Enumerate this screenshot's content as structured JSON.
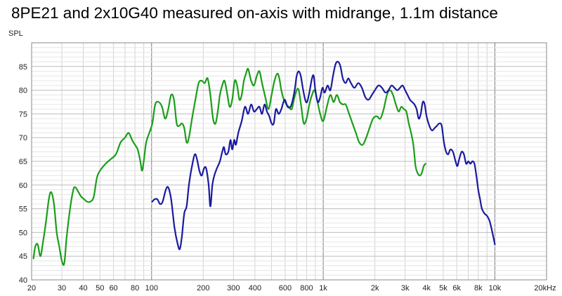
{
  "chart_data": {
    "type": "line",
    "title": "8PE21 and 2x10G40 measured on-axis with midrange, 1.1m distance",
    "ylabel": "SPL",
    "xlabel": "",
    "x_scale": "log",
    "xlim": [
      20,
      20000
    ],
    "ylim": [
      40,
      90
    ],
    "grid": true,
    "y_ticks": [
      40,
      45,
      50,
      55,
      60,
      65,
      70,
      75,
      80,
      85
    ],
    "x_ticks": [
      {
        "value": 20,
        "label": "20"
      },
      {
        "value": 30,
        "label": "30"
      },
      {
        "value": 40,
        "label": "40"
      },
      {
        "value": 50,
        "label": "50"
      },
      {
        "value": 60,
        "label": "60"
      },
      {
        "value": 80,
        "label": "80"
      },
      {
        "value": 100,
        "label": "100"
      },
      {
        "value": 200,
        "label": "200"
      },
      {
        "value": 300,
        "label": "300"
      },
      {
        "value": 400,
        "label": "400"
      },
      {
        "value": 600,
        "label": "600"
      },
      {
        "value": 800,
        "label": "800"
      },
      {
        "value": 1000,
        "label": "1k"
      },
      {
        "value": 2000,
        "label": "2k"
      },
      {
        "value": 3000,
        "label": "3k"
      },
      {
        "value": 4000,
        "label": "4k"
      },
      {
        "value": 5000,
        "label": "5k"
      },
      {
        "value": 6000,
        "label": "6k"
      },
      {
        "value": 8000,
        "label": "8k"
      },
      {
        "value": 10000,
        "label": "10k"
      },
      {
        "value": 20000,
        "label": "20kHz"
      }
    ],
    "series": [
      {
        "color": "#1a9e1a",
        "points": [
          [
            20.5,
            44.5
          ],
          [
            21,
            47
          ],
          [
            21.7,
            47.5
          ],
          [
            22.5,
            45
          ],
          [
            23.3,
            48
          ],
          [
            24.2,
            52
          ],
          [
            25.2,
            57
          ],
          [
            26,
            58.5
          ],
          [
            27,
            56
          ],
          [
            28,
            50
          ],
          [
            29,
            47
          ],
          [
            30,
            44
          ],
          [
            31,
            43.5
          ],
          [
            32,
            49
          ],
          [
            33.5,
            55
          ],
          [
            35,
            59
          ],
          [
            36,
            59.5
          ],
          [
            37.5,
            58.5
          ],
          [
            39,
            57.5
          ],
          [
            40.5,
            57
          ],
          [
            42,
            56.5
          ],
          [
            44,
            56.5
          ],
          [
            46,
            57.5
          ],
          [
            48,
            61.5
          ],
          [
            50,
            63
          ],
          [
            54,
            64.5
          ],
          [
            58,
            65.5
          ],
          [
            62,
            66.5
          ],
          [
            66,
            69
          ],
          [
            70,
            70
          ],
          [
            73,
            71
          ],
          [
            75,
            70.5
          ],
          [
            77,
            69.5
          ],
          [
            80,
            68.5
          ],
          [
            83,
            67.5
          ],
          [
            86,
            65
          ],
          [
            88,
            63
          ],
          [
            90,
            65
          ],
          [
            93,
            69
          ],
          [
            97,
            71
          ],
          [
            101,
            73
          ],
          [
            105,
            77
          ],
          [
            110,
            77.5
          ],
          [
            115,
            76.5
          ],
          [
            120,
            74
          ],
          [
            125,
            76
          ],
          [
            130,
            79
          ],
          [
            135,
            78
          ],
          [
            140,
            73
          ],
          [
            145,
            72.5
          ],
          [
            150,
            73
          ],
          [
            155,
            72
          ],
          [
            160,
            69
          ],
          [
            165,
            70
          ],
          [
            172,
            74
          ],
          [
            180,
            78
          ],
          [
            188,
            81.5
          ],
          [
            196,
            82
          ],
          [
            204,
            81.5
          ],
          [
            212,
            82.5
          ],
          [
            220,
            79
          ],
          [
            228,
            74
          ],
          [
            236,
            73
          ],
          [
            244,
            76
          ],
          [
            250,
            79
          ],
          [
            258,
            81
          ],
          [
            266,
            82
          ],
          [
            275,
            79.5
          ],
          [
            285,
            76.5
          ],
          [
            295,
            78
          ],
          [
            305,
            82
          ],
          [
            315,
            81
          ],
          [
            325,
            78
          ],
          [
            335,
            79
          ],
          [
            345,
            82
          ],
          [
            355,
            83.5
          ],
          [
            365,
            84.5
          ],
          [
            380,
            82
          ],
          [
            395,
            81
          ],
          [
            410,
            83
          ],
          [
            425,
            84
          ],
          [
            440,
            81.5
          ],
          [
            460,
            78.5
          ],
          [
            480,
            76
          ],
          [
            500,
            79
          ],
          [
            520,
            82
          ],
          [
            540,
            83.5
          ],
          [
            555,
            82.5
          ],
          [
            570,
            80
          ],
          [
            590,
            78
          ],
          [
            610,
            77
          ],
          [
            630,
            76.5
          ],
          [
            655,
            76
          ],
          [
            675,
            78
          ],
          [
            700,
            80
          ],
          [
            720,
            80
          ],
          [
            745,
            76.5
          ],
          [
            770,
            73
          ],
          [
            800,
            74
          ],
          [
            830,
            77
          ],
          [
            860,
            79
          ],
          [
            890,
            80
          ],
          [
            920,
            78
          ],
          [
            960,
            75
          ],
          [
            1000,
            73.5
          ],
          [
            1050,
            76.5
          ],
          [
            1100,
            79
          ],
          [
            1150,
            77.5
          ],
          [
            1200,
            79
          ],
          [
            1250,
            77.5
          ],
          [
            1300,
            77
          ],
          [
            1350,
            77
          ],
          [
            1400,
            75.5
          ],
          [
            1480,
            73
          ],
          [
            1550,
            71
          ],
          [
            1620,
            69
          ],
          [
            1700,
            68.5
          ],
          [
            1780,
            70
          ],
          [
            1860,
            72
          ],
          [
            1950,
            74
          ],
          [
            2050,
            74.5
          ],
          [
            2150,
            74
          ],
          [
            2250,
            76
          ],
          [
            2350,
            79
          ],
          [
            2450,
            80
          ],
          [
            2550,
            79
          ],
          [
            2650,
            77
          ],
          [
            2750,
            75.5
          ],
          [
            2850,
            76.5
          ],
          [
            2950,
            76
          ],
          [
            3050,
            75.5
          ],
          [
            3150,
            73
          ],
          [
            3250,
            71
          ],
          [
            3350,
            68.5
          ],
          [
            3450,
            64
          ],
          [
            3550,
            62.5
          ],
          [
            3650,
            62
          ],
          [
            3750,
            62.5
          ],
          [
            3850,
            64
          ],
          [
            3950,
            64.5
          ]
        ]
      },
      {
        "color": "#1a1aa0",
        "points": [
          [
            101,
            56.5
          ],
          [
            104,
            57
          ],
          [
            108,
            57
          ],
          [
            112,
            56
          ],
          [
            116,
            56.5
          ],
          [
            121,
            59
          ],
          [
            125,
            59.5
          ],
          [
            130,
            57
          ],
          [
            136,
            51
          ],
          [
            142,
            47.5
          ],
          [
            146,
            46.5
          ],
          [
            150,
            49
          ],
          [
            155,
            54
          ],
          [
            160,
            55.5
          ],
          [
            165,
            60
          ],
          [
            172,
            64
          ],
          [
            180,
            66.5
          ],
          [
            190,
            63
          ],
          [
            196,
            62
          ],
          [
            202,
            63.5
          ],
          [
            208,
            63.5
          ],
          [
            215,
            60
          ],
          [
            220,
            55.5
          ],
          [
            226,
            60
          ],
          [
            232,
            62
          ],
          [
            240,
            63.5
          ],
          [
            250,
            65
          ],
          [
            258,
            67
          ],
          [
            264,
            68
          ],
          [
            270,
            66.5
          ],
          [
            280,
            67
          ],
          [
            288,
            69.5
          ],
          [
            295,
            67.5
          ],
          [
            303,
            69.5
          ],
          [
            310,
            68.5
          ],
          [
            320,
            71
          ],
          [
            335,
            73.5
          ],
          [
            350,
            76.5
          ],
          [
            365,
            75
          ],
          [
            380,
            77
          ],
          [
            395,
            75.5
          ],
          [
            410,
            76
          ],
          [
            425,
            76.5
          ],
          [
            440,
            75
          ],
          [
            455,
            77
          ],
          [
            470,
            75.5
          ],
          [
            485,
            74.5
          ],
          [
            500,
            73
          ],
          [
            515,
            73
          ],
          [
            530,
            76
          ],
          [
            550,
            75
          ],
          [
            570,
            76
          ],
          [
            595,
            78
          ],
          [
            620,
            76.5
          ],
          [
            645,
            76.5
          ],
          [
            665,
            78
          ],
          [
            685,
            80.5
          ],
          [
            700,
            83
          ],
          [
            720,
            84
          ],
          [
            740,
            83
          ],
          [
            760,
            80.5
          ],
          [
            785,
            78
          ],
          [
            805,
            77.5
          ],
          [
            830,
            79.5
          ],
          [
            860,
            82.5
          ],
          [
            880,
            83
          ],
          [
            900,
            80
          ],
          [
            930,
            77.5
          ],
          [
            960,
            78.5
          ],
          [
            990,
            80.5
          ],
          [
            1020,
            79.5
          ],
          [
            1060,
            81
          ],
          [
            1100,
            80
          ],
          [
            1140,
            83
          ],
          [
            1180,
            85.5
          ],
          [
            1220,
            86
          ],
          [
            1260,
            85
          ],
          [
            1300,
            82.5
          ],
          [
            1350,
            81.5
          ],
          [
            1400,
            82.5
          ],
          [
            1450,
            81.5
          ],
          [
            1520,
            80.5
          ],
          [
            1600,
            81.5
          ],
          [
            1680,
            80.5
          ],
          [
            1760,
            78.5
          ],
          [
            1840,
            78
          ],
          [
            1920,
            79
          ],
          [
            2000,
            80
          ],
          [
            2100,
            81
          ],
          [
            2200,
            80.5
          ],
          [
            2300,
            79.5
          ],
          [
            2400,
            80
          ],
          [
            2500,
            81
          ],
          [
            2600,
            80.5
          ],
          [
            2700,
            80
          ],
          [
            2800,
            80.5
          ],
          [
            2900,
            81
          ],
          [
            3000,
            80
          ],
          [
            3100,
            79
          ],
          [
            3200,
            78
          ],
          [
            3300,
            77.5
          ],
          [
            3400,
            77
          ],
          [
            3500,
            76
          ],
          [
            3600,
            74
          ],
          [
            3700,
            75
          ],
          [
            3800,
            77.5
          ],
          [
            3900,
            77
          ],
          [
            4000,
            74.5
          ],
          [
            4150,
            72.5
          ],
          [
            4300,
            71.5
          ],
          [
            4450,
            72
          ],
          [
            4600,
            72.5
          ],
          [
            4750,
            73
          ],
          [
            4900,
            72.5
          ],
          [
            5050,
            69
          ],
          [
            5200,
            67
          ],
          [
            5350,
            66.5
          ],
          [
            5500,
            67.5
          ],
          [
            5700,
            67
          ],
          [
            5900,
            65
          ],
          [
            6050,
            64
          ],
          [
            6200,
            65.5
          ],
          [
            6400,
            67
          ],
          [
            6600,
            66.5
          ],
          [
            6800,
            64.5
          ],
          [
            7000,
            65
          ],
          [
            7200,
            64.5
          ],
          [
            7400,
            65
          ],
          [
            7600,
            64.5
          ],
          [
            7800,
            62
          ],
          [
            8000,
            59
          ],
          [
            8200,
            57
          ],
          [
            8400,
            55
          ],
          [
            8700,
            54
          ],
          [
            9000,
            53.5
          ],
          [
            9300,
            52.5
          ],
          [
            9600,
            50.5
          ],
          [
            10000,
            47.5
          ]
        ]
      }
    ]
  }
}
